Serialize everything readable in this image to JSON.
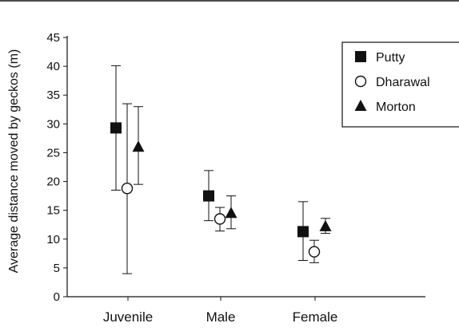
{
  "chart_data": {
    "type": "scatter",
    "title": "",
    "xlabel": "",
    "ylabel": "Average distance moved by geckos (m)",
    "categories": [
      "Juvenile",
      "Male",
      "Female"
    ],
    "ylim": [
      0,
      45
    ],
    "yticks": [
      "0",
      "5",
      "10",
      "15",
      "20",
      "25",
      "30",
      "35",
      "40",
      "45"
    ],
    "grid": false,
    "legend_position": "top-right",
    "error_bars": true,
    "series": [
      {
        "name": "Putty",
        "marker": "square-filled",
        "color": "#111111",
        "values": [
          29.3,
          17.5,
          11.3
        ],
        "error_low": [
          18.5,
          13.2,
          6.3
        ],
        "error_high": [
          40.1,
          21.9,
          16.5
        ]
      },
      {
        "name": "Dharawal",
        "marker": "circle-open",
        "color": "#111111",
        "values": [
          18.8,
          13.5,
          7.8
        ],
        "error_low": [
          4.0,
          11.4,
          5.9
        ],
        "error_high": [
          33.5,
          15.5,
          9.8
        ]
      },
      {
        "name": "Morton",
        "marker": "triangle-filled",
        "color": "#111111",
        "values": [
          26.0,
          14.5,
          12.2
        ],
        "error_low": [
          19.5,
          11.8,
          11.0
        ],
        "error_high": [
          33.0,
          17.5,
          13.6
        ]
      }
    ]
  }
}
